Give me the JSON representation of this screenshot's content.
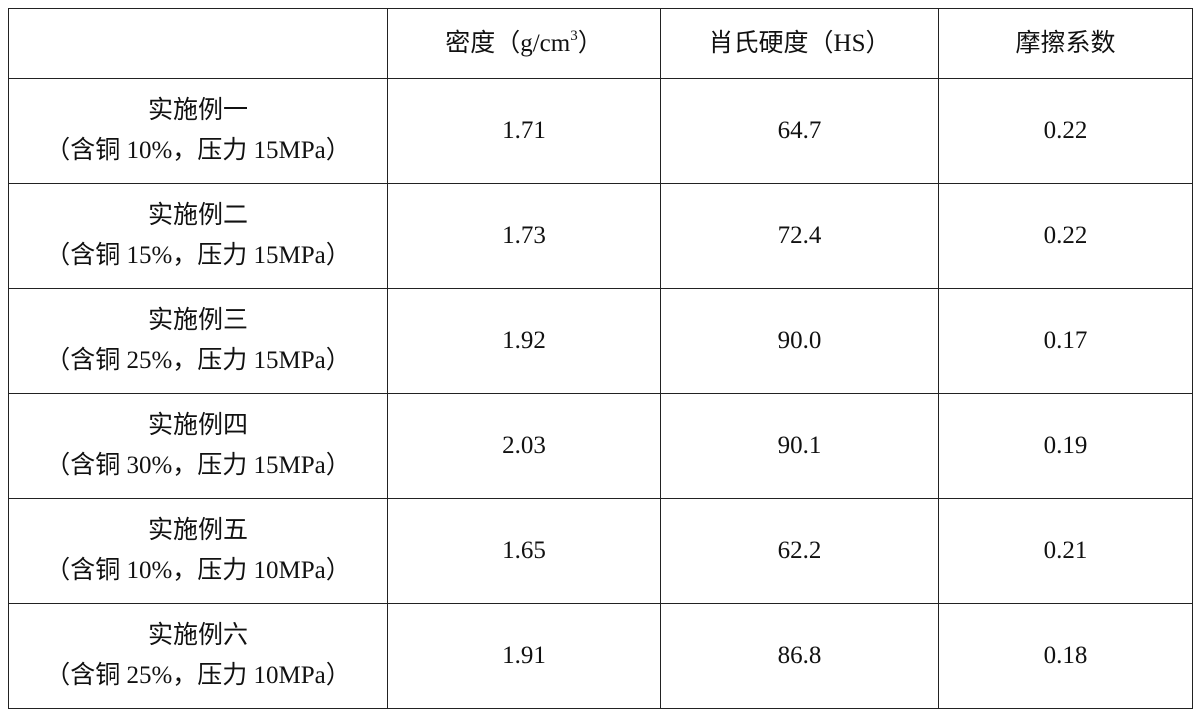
{
  "table": {
    "header": {
      "density": {
        "text": "密度（g/cm",
        "sup": "3",
        "close": "）"
      },
      "hardness": "肖氏硬度（HS）",
      "friction": "摩擦系数"
    },
    "rows": [
      {
        "name": "实施例一",
        "condition": "（含铜 10%，压力 15MPa）",
        "density": "1.71",
        "hardness": "64.7",
        "friction": "0.22"
      },
      {
        "name": "实施例二",
        "condition": "（含铜 15%，压力 15MPa）",
        "density": "1.73",
        "hardness": "72.4",
        "friction": "0.22"
      },
      {
        "name": "实施例三",
        "condition": "（含铜 25%，压力 15MPa）",
        "density": "1.92",
        "hardness": "90.0",
        "friction": "0.17"
      },
      {
        "name": "实施例四",
        "condition": "（含铜 30%，压力 15MPa）",
        "density": "2.03",
        "hardness": "90.1",
        "friction": "0.19"
      },
      {
        "name": "实施例五",
        "condition": "（含铜 10%，压力 10MPa）",
        "density": "1.65",
        "hardness": "62.2",
        "friction": "0.21"
      },
      {
        "name": "实施例六",
        "condition": "（含铜 25%，压力 10MPa）",
        "density": "1.91",
        "hardness": "86.8",
        "friction": "0.18"
      }
    ]
  }
}
